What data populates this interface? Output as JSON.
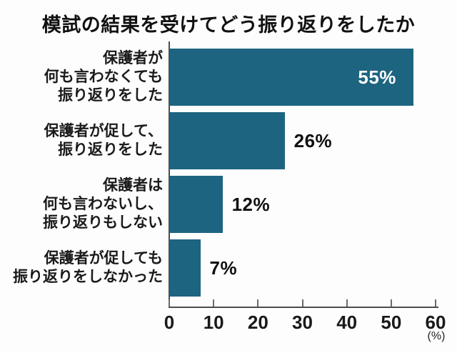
{
  "chart_data": {
    "type": "bar",
    "orientation": "horizontal",
    "title": "模試の結果を受けてどう振り返りをしたか",
    "categories": [
      "保護者が\n何も言わなくても\n振り返りをした",
      "保護者が促して、\n振り返りをした",
      "保護者は\n何も言わないし、\n振り返りもしない",
      "保護者が促しても\n振り返りをしなかった"
    ],
    "values": [
      55,
      26,
      12,
      7
    ],
    "display_values": [
      "55%",
      "26%",
      "12%",
      "7%"
    ],
    "value_label_position": [
      "inside",
      "outside",
      "outside",
      "outside"
    ],
    "xlabel": "",
    "ylabel": "",
    "xlim": [
      0,
      60
    ],
    "xticks": [
      0,
      10,
      20,
      30,
      40,
      50,
      60
    ],
    "xtick_labels": [
      "0",
      "10",
      "20",
      "30",
      "40",
      "50",
      "60"
    ],
    "unit_label": "(%)",
    "bar_color": "#1d6480",
    "value_inside_color": "#ffffff",
    "value_outside_color": "#111111",
    "grid": false,
    "legend": false
  }
}
